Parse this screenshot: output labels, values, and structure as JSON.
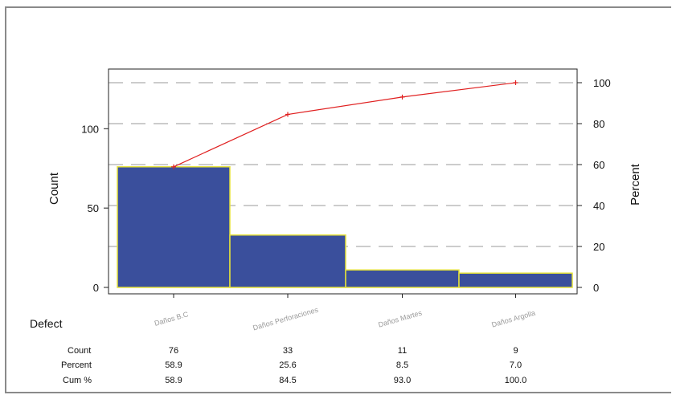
{
  "chart_data": {
    "type": "bar",
    "categories": [
      "Daños B.C",
      "Daños Perforaciones",
      "Daños Martes",
      "Daños Argolla"
    ],
    "series": [
      {
        "type": "bar",
        "values": [
          76,
          33,
          11,
          9
        ]
      },
      {
        "type": "line",
        "values": [
          58.9,
          84.5,
          93.0,
          100.0
        ]
      }
    ],
    "ylabel": "Count",
    "y2label": "Percent",
    "ylim": [
      0,
      129
    ],
    "y2lim": [
      0,
      100
    ],
    "yticks": [
      "0",
      "50",
      "100"
    ],
    "y2ticks": [
      "0",
      "20",
      "40",
      "60",
      "80",
      "100"
    ],
    "grid": true,
    "colors": {
      "bar": "#3a4f9c",
      "bar_edge": "#e5e23a",
      "line": "#e02020",
      "grid": "#9a9a9a"
    },
    "table": {
      "header": "Defect",
      "rows": [
        {
          "label": "Count",
          "values": [
            "76",
            "33",
            "11",
            "9"
          ]
        },
        {
          "label": "Percent",
          "values": [
            "58.9",
            "25.6",
            "8.5",
            "7.0"
          ]
        },
        {
          "label": "Cum %",
          "values": [
            "58.9",
            "84.5",
            "93.0",
            "100.0"
          ]
        }
      ]
    }
  }
}
